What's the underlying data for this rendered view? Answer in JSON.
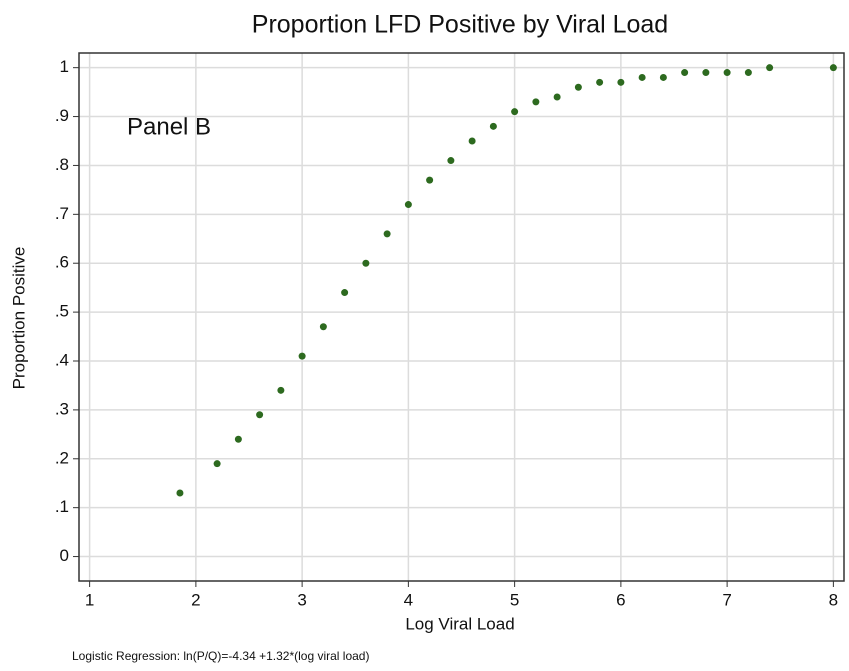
{
  "chart_data": {
    "type": "scatter",
    "title": "Proportion LFD Positive by Viral Load",
    "x_label": "Log Viral Load",
    "y_label": "Proportion Positive",
    "annotation": "Panel B",
    "footnote": "Logistic Regression: ln(P/Q)=-4.34 +1.32*(log viral load)",
    "xlim": [
      0.9,
      8.1
    ],
    "ylim": [
      -0.05,
      1.03
    ],
    "xticks": [
      1,
      2,
      3,
      4,
      5,
      6,
      7,
      8
    ],
    "yticks": [
      0,
      {
        "value": 0.1,
        "label": ".1"
      },
      {
        "value": 0.2,
        "label": ".2"
      },
      {
        "value": 0.3,
        "label": ".3"
      },
      {
        "value": 0.4,
        "label": ".4"
      },
      {
        "value": 0.5,
        "label": ".5"
      },
      {
        "value": 0.6,
        "label": ".6"
      },
      {
        "value": 0.7,
        "label": ".7"
      },
      {
        "value": 0.8,
        "label": ".8"
      },
      {
        "value": 0.9,
        "label": ".9"
      },
      1
    ],
    "grid": true,
    "color": "#2d6a1f",
    "x": [
      1.85,
      2.2,
      2.4,
      2.6,
      2.8,
      3.0,
      3.2,
      3.4,
      3.6,
      3.8,
      4.0,
      4.2,
      4.4,
      4.6,
      4.8,
      5.0,
      5.2,
      5.4,
      5.6,
      5.8,
      6.0,
      6.2,
      6.4,
      6.6,
      6.8,
      7.0,
      7.2,
      7.4,
      8.0
    ],
    "values": [
      0.13,
      0.19,
      0.24,
      0.29,
      0.34,
      0.41,
      0.47,
      0.54,
      0.6,
      0.66,
      0.72,
      0.77,
      0.81,
      0.85,
      0.88,
      0.91,
      0.93,
      0.94,
      0.96,
      0.97,
      0.97,
      0.98,
      0.98,
      0.99,
      0.99,
      0.99,
      0.99,
      1.0,
      1.0
    ]
  }
}
